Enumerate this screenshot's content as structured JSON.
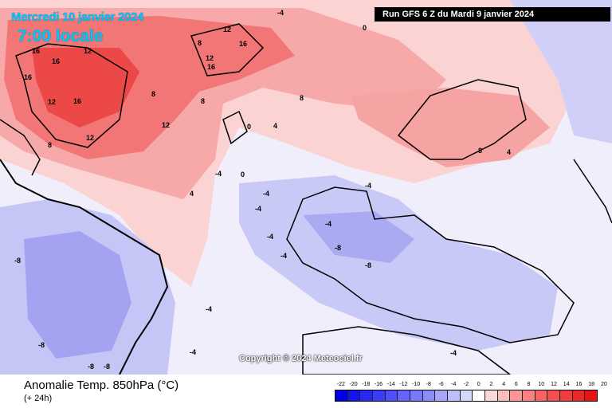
{
  "header": {
    "date": "Mercredi 10 janvier 2024",
    "time": "7:00 locale",
    "run": "Run GFS 6 Z du Mardi 9 janvier 2024"
  },
  "copyright": "Copyright © 2024 Meteociel.fr",
  "legend": {
    "title": "Anomalie Temp. 850hPa (°C)",
    "subtitle": "(+ 24h)",
    "scale": [
      "-22",
      "-20",
      "-18",
      "-16",
      "-14",
      "-12",
      "-10",
      "-8",
      "-6",
      "-4",
      "-2",
      "0",
      "2",
      "4",
      "6",
      "8",
      "10",
      "12",
      "14",
      "16",
      "18",
      "20"
    ],
    "colors": [
      "#0000e6",
      "#1414f0",
      "#2828f5",
      "#3c3cf8",
      "#5050fa",
      "#6464fa",
      "#7878fa",
      "#8c8cfa",
      "#a5a5fa",
      "#bebefa",
      "#d7d7fc",
      "#ffffff",
      "#fcd7d7",
      "#fabebe",
      "#fa9696",
      "#fa8282",
      "#f86464",
      "#f55050",
      "#f03c3c",
      "#eb2828",
      "#e61414"
    ]
  },
  "map": {
    "contour_labels": [
      "16",
      "12",
      "8",
      "4",
      "0",
      "-4",
      "-8"
    ]
  }
}
